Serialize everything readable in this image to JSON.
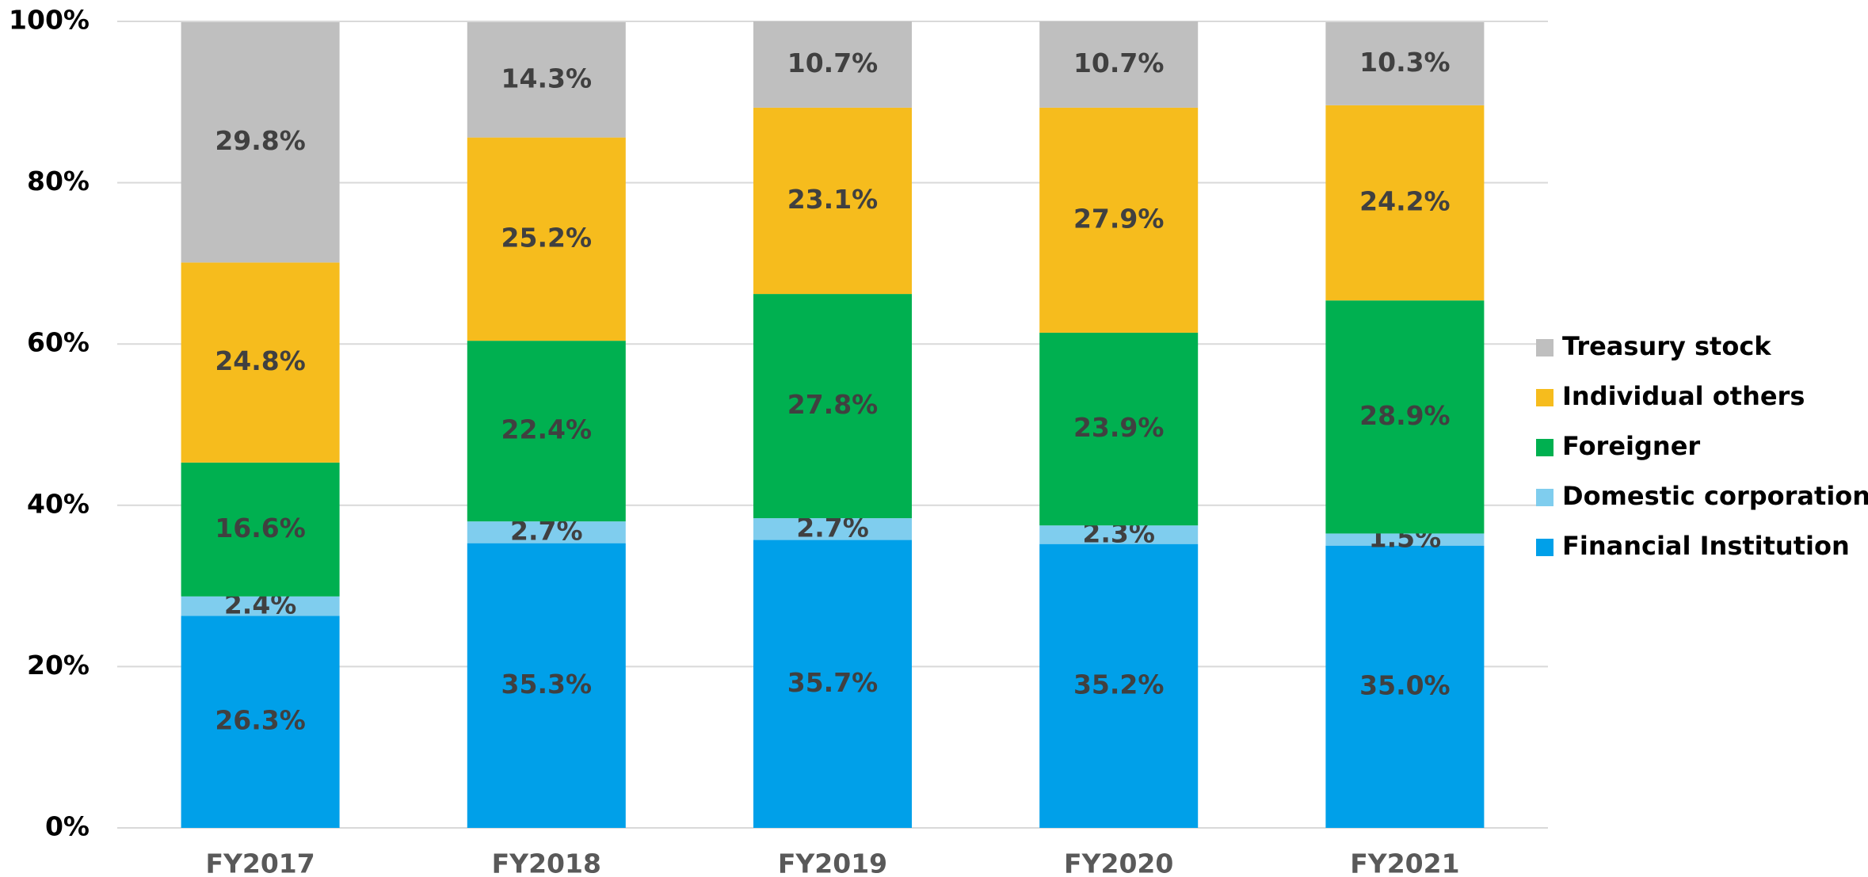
{
  "chart_data": {
    "type": "stacked_bar",
    "categories": [
      "FY2017",
      "FY2018",
      "FY2019",
      "FY2020",
      "FY2021"
    ],
    "series": [
      {
        "name": "Financial Institution",
        "color": "#00a0e9",
        "values": [
          26.3,
          35.3,
          35.7,
          35.2,
          35.0
        ],
        "value_labels": [
          "26.3%",
          "35.3%",
          "35.7%",
          "35.2%",
          "35.0%"
        ]
      },
      {
        "name": "Domestic corporation",
        "color": "#7fcdee",
        "values": [
          2.4,
          2.7,
          2.7,
          2.3,
          1.5
        ],
        "value_labels": [
          "2.4%",
          "2.7%",
          "2.7%",
          "2.3%",
          "1.5%"
        ]
      },
      {
        "name": "Foreigner",
        "color": "#00b050",
        "values": [
          16.6,
          22.4,
          27.8,
          23.9,
          28.9
        ],
        "value_labels": [
          "16.6%",
          "22.4%",
          "27.8%",
          "23.9%",
          "28.9%"
        ]
      },
      {
        "name": "Individual others",
        "color": "#f6bc1d",
        "values": [
          24.8,
          25.2,
          23.1,
          27.9,
          24.2
        ],
        "value_labels": [
          "24.8%",
          "25.2%",
          "23.1%",
          "27.9%",
          "24.2%"
        ]
      },
      {
        "name": "Treasury stock",
        "color": "#bfbfbf",
        "values": [
          29.8,
          14.3,
          10.7,
          10.7,
          10.3
        ],
        "value_labels": [
          "29.8%",
          "14.3%",
          "10.7%",
          "10.7%",
          "10.3%"
        ]
      }
    ],
    "ylim": [
      0,
      100
    ],
    "yticks": [
      {
        "value": 0,
        "label": "0%"
      },
      {
        "value": 20,
        "label": "20%"
      },
      {
        "value": 40,
        "label": "40%"
      },
      {
        "value": 60,
        "label": "60%"
      },
      {
        "value": 80,
        "label": "80%"
      },
      {
        "value": 100,
        "label": "100%"
      }
    ],
    "grid": true,
    "legend": "right"
  }
}
